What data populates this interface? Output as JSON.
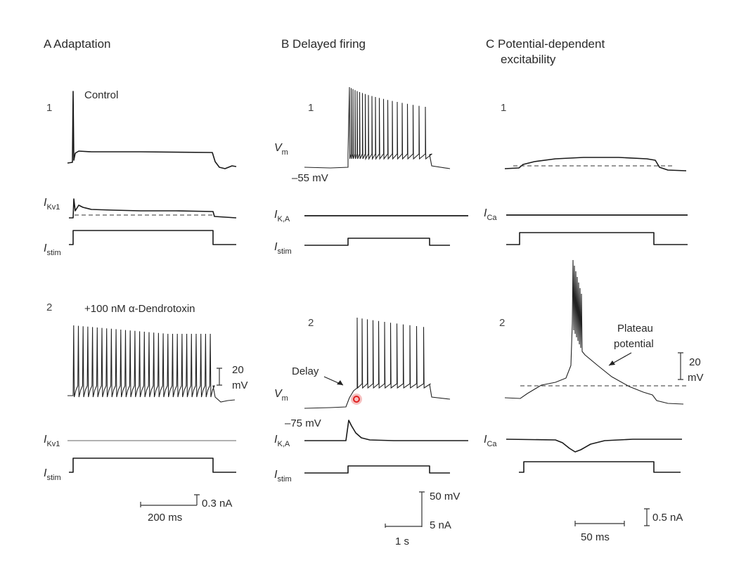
{
  "panels": {
    "a": {
      "header": "A  Adaptation",
      "row1_num": "1",
      "row1_label": "Control",
      "row2_num": "2",
      "row2_label": "+100 nM α-Dendrotoxin",
      "current_label": "I",
      "current_sub": "Kv1",
      "stim_label": "I",
      "stim_sub": "stim",
      "scale_v": "20",
      "scale_v_unit": "mV",
      "scale_i": "0.3 nA",
      "scale_t": "200 ms"
    },
    "b": {
      "header": "B  Delayed firing",
      "row1_num": "1",
      "row2_num": "2",
      "vm_label": "V",
      "vm_sub": "m",
      "row1_resting": "–55 mV",
      "row2_resting": "–75 mV",
      "delay_label": "Delay",
      "current_label": "I",
      "current_sub": "K,A",
      "stim_label": "I",
      "stim_sub": "stim",
      "scale_v": "50 mV",
      "scale_i": "5 nA",
      "scale_t": "1 s"
    },
    "c": {
      "header_line1": "C  Potential-dependent",
      "header_line2": "excitability",
      "row1_num": "1",
      "row2_num": "2",
      "plateau_line1": "Plateau",
      "plateau_line2": "potential",
      "current_label": "I",
      "current_sub": "Ca",
      "scale_v": "20",
      "scale_v_unit": "mV",
      "scale_i": "0.5 nA",
      "scale_t": "50 ms"
    }
  },
  "colors": {
    "trace": "#1a1a1a",
    "marker": "#e02020"
  }
}
